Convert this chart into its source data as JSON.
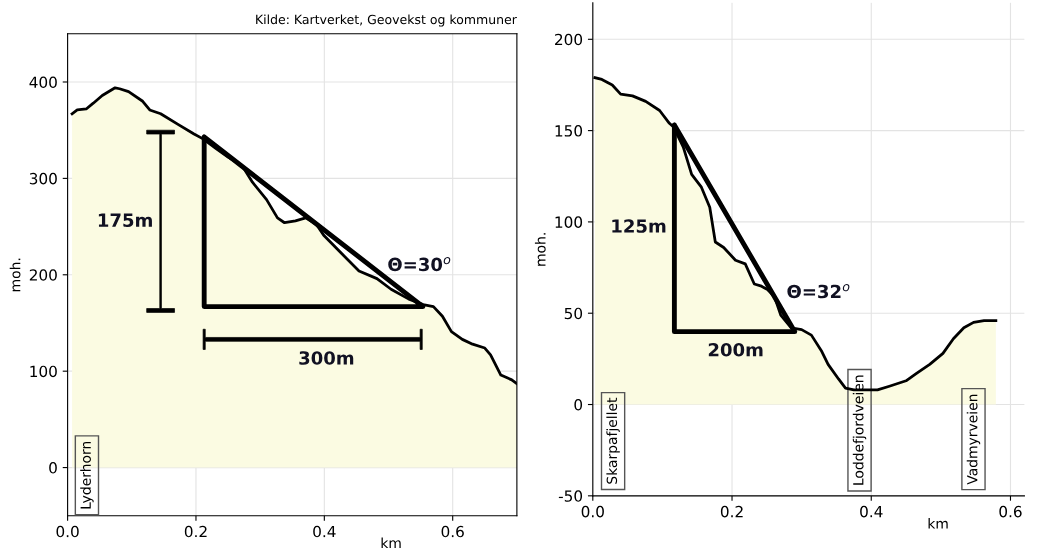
{
  "chart_data": [
    {
      "type": "area",
      "xlabel": "km",
      "ylabel": "moh.",
      "xlim": [
        0,
        0.7
      ],
      "ylim": [
        -50,
        450
      ],
      "xticks": [
        {
          "value": 0,
          "label": "0.0"
        },
        0.2,
        0.4,
        0.6
      ],
      "yticks": [
        0,
        100,
        200,
        300,
        400
      ],
      "grid": true,
      "color": "#fbfbe2",
      "x": [
        0.007,
        0.015,
        0.029,
        0.04,
        0.054,
        0.074,
        0.081,
        0.095,
        0.117,
        0.128,
        0.145,
        0.172,
        0.197,
        0.211,
        0.233,
        0.25,
        0.272,
        0.288,
        0.31,
        0.327,
        0.338,
        0.355,
        0.371,
        0.388,
        0.399,
        0.427,
        0.454,
        0.482,
        0.504,
        0.531,
        0.554,
        0.57,
        0.584,
        0.598,
        0.615,
        0.631,
        0.65,
        0.659,
        0.675,
        0.692,
        0.7
      ],
      "values": [
        367,
        371,
        372,
        378,
        386,
        394,
        393,
        390,
        380,
        371,
        367,
        356,
        346,
        341,
        330,
        322,
        313,
        296,
        278,
        259,
        254,
        256,
        259,
        252,
        241,
        222,
        204,
        196,
        185,
        175,
        169,
        167,
        157,
        141,
        133,
        128,
        124,
        117,
        96,
        91,
        87
      ],
      "annotations": [
        "Kilde: Kartverket, Geovekst og kommuner",
        "175m",
        "300m",
        "Θ=30$^{o}$",
        "Lyderhorn"
      ]
    },
    {
      "type": "area",
      "xlabel": "km",
      "ylabel": "moh.",
      "xlim": [
        0,
        0.62
      ],
      "ylim": [
        -50,
        220
      ],
      "xticks": [
        {
          "value": 0,
          "label": "0.0"
        },
        0.2,
        0.4,
        0.6
      ],
      "yticks": [
        -50,
        0,
        50,
        100,
        150,
        200
      ],
      "grid": true,
      "color": "#fbfbe2",
      "x": [
        0.003,
        0.013,
        0.028,
        0.04,
        0.057,
        0.076,
        0.096,
        0.11,
        0.116,
        0.13,
        0.142,
        0.156,
        0.168,
        0.176,
        0.188,
        0.205,
        0.219,
        0.232,
        0.241,
        0.251,
        0.261,
        0.27,
        0.285,
        0.3,
        0.314,
        0.329,
        0.338,
        0.353,
        0.363,
        0.375,
        0.409,
        0.426,
        0.45,
        0.465,
        0.484,
        0.503,
        0.518,
        0.533,
        0.547,
        0.562,
        0.579
      ],
      "values": [
        179,
        178,
        175,
        170,
        169,
        166,
        161,
        154,
        152,
        141,
        126,
        119,
        108,
        89,
        86,
        79,
        77,
        66,
        65,
        63,
        59,
        49,
        42,
        41,
        38,
        29,
        22,
        14,
        9,
        8,
        8,
        10,
        13,
        17,
        22,
        28,
        36,
        42,
        45,
        46,
        46
      ],
      "annotations": [
        "125m",
        "200m",
        "Θ=32$^{o}$",
        "Skarpafjellet",
        "Loddefjordveien",
        "Vadmyrveien"
      ]
    }
  ]
}
